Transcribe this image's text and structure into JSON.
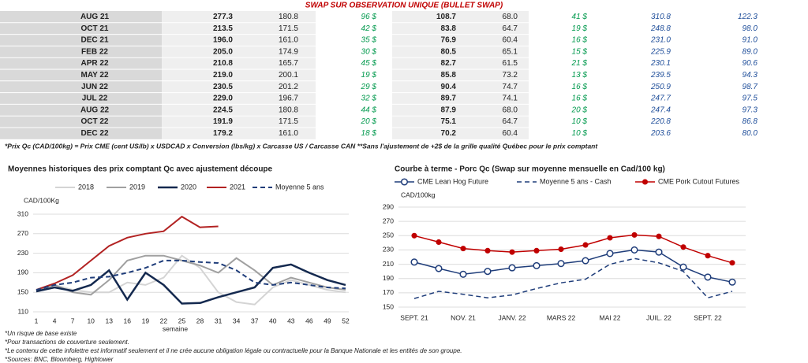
{
  "table": {
    "title": "SWAP SUR OBSERVATION UNIQUE (BULLET SWAP)",
    "rows": [
      [
        "AUG 21",
        "277.3",
        "180.8",
        "96 $",
        "108.7",
        "68.0",
        "41 $",
        "310.8",
        "122.3"
      ],
      [
        "OCT 21",
        "213.5",
        "171.5",
        "42 $",
        "83.8",
        "64.7",
        "19 $",
        "248.8",
        "98.0"
      ],
      [
        "DEC 21",
        "196.0",
        "161.0",
        "35 $",
        "76.9",
        "60.4",
        "16 $",
        "231.0",
        "91.0"
      ],
      [
        "FEB 22",
        "205.0",
        "174.9",
        "30 $",
        "80.5",
        "65.1",
        "15 $",
        "225.9",
        "89.0"
      ],
      [
        "APR 22",
        "210.8",
        "165.7",
        "45 $",
        "82.7",
        "61.5",
        "21 $",
        "230.1",
        "90.6"
      ],
      [
        "MAY 22",
        "219.0",
        "200.1",
        "19 $",
        "85.8",
        "73.2",
        "13 $",
        "239.5",
        "94.3"
      ],
      [
        "JUN 22",
        "230.5",
        "201.2",
        "29 $",
        "90.4",
        "74.7",
        "16 $",
        "250.9",
        "98.7"
      ],
      [
        "JUL 22",
        "229.0",
        "196.7",
        "32 $",
        "89.7",
        "74.1",
        "16 $",
        "247.7",
        "97.5"
      ],
      [
        "AUG 22",
        "224.5",
        "180.8",
        "44 $",
        "87.9",
        "68.0",
        "20 $",
        "247.4",
        "97.3"
      ],
      [
        "OCT 22",
        "191.9",
        "171.5",
        "20 $",
        "75.1",
        "64.7",
        "10 $",
        "220.8",
        "86.8"
      ],
      [
        "DEC 22",
        "179.2",
        "161.0",
        "18 $",
        "70.2",
        "60.4",
        "10 $",
        "203.6",
        "80.0"
      ]
    ],
    "footnote": "*Prix Qc (CAD/100kg) = Prix CME (cent US/lb) x USDCAD x Conversion (lbs/kg) x Carcasse US / Carcasse CAN **Sans l'ajustement de +2$ de la grille qualité Québec pour le prix comptant"
  },
  "chart_data": [
    {
      "type": "line",
      "title": "Moyennes historiques des prix comptant Qc avec ajustement découpe",
      "y_label": "CAD/100Kg",
      "x_label": "semaine",
      "x": [
        1,
        4,
        7,
        10,
        13,
        16,
        19,
        22,
        25,
        28,
        31,
        34,
        37,
        40,
        43,
        46,
        49,
        52
      ],
      "xlim": [
        1,
        52
      ],
      "xticks": [
        1,
        4,
        7,
        10,
        13,
        16,
        19,
        22,
        25,
        28,
        31,
        34,
        37,
        40,
        43,
        46,
        49,
        52
      ],
      "ylim": [
        110,
        310
      ],
      "yticks": [
        110,
        150,
        190,
        230,
        270,
        310
      ],
      "grid": true,
      "legend": "top",
      "series": [
        {
          "name": "2018",
          "color": "#d4d4d4",
          "width": 2,
          "values": [
            150,
            165,
            155,
            150,
            150,
            170,
            165,
            180,
            225,
            200,
            150,
            130,
            125,
            160,
            175,
            165,
            155,
            150
          ]
        },
        {
          "name": "2019",
          "color": "#a0a0a0",
          "width": 2,
          "values": [
            155,
            165,
            150,
            145,
            175,
            215,
            225,
            225,
            215,
            205,
            190,
            220,
            195,
            165,
            180,
            170,
            160,
            155
          ]
        },
        {
          "name": "2020",
          "color": "#14294f",
          "width": 2.5,
          "values": [
            152,
            160,
            153,
            165,
            195,
            135,
            190,
            165,
            127,
            128,
            140,
            150,
            160,
            200,
            207,
            190,
            175,
            165
          ]
        },
        {
          "name": "2021",
          "color": "#b22222",
          "width": 2,
          "values": [
            155,
            168,
            185,
            215,
            245,
            262,
            270,
            275,
            305,
            283,
            285,
            null,
            null,
            null,
            null,
            null,
            null,
            null
          ]
        },
        {
          "name": "Moyenne 5 ans",
          "color": "#1f3d7a",
          "width": 2,
          "dash": true,
          "values": [
            155,
            165,
            170,
            180,
            182,
            190,
            200,
            215,
            215,
            212,
            210,
            195,
            170,
            165,
            170,
            165,
            160,
            158
          ]
        }
      ]
    },
    {
      "type": "line",
      "title": "Courbe à terme - Porc Qc (Swap sur moyenne mensuelle en Cad/100 kg)",
      "y_label": "CAD/100kg",
      "categories": [
        "SEPT. 21",
        null,
        "NOV. 21",
        null,
        "JANV. 22",
        null,
        "MARS 22",
        null,
        "MAI 22",
        null,
        "JUIL. 22",
        null,
        "SEPT. 22",
        null
      ],
      "ylim": [
        150,
        290
      ],
      "yticks": [
        150,
        170,
        190,
        210,
        230,
        250,
        270,
        290
      ],
      "grid": true,
      "legend": "top",
      "series": [
        {
          "name": "CME Lean Hog Future",
          "color": "#1f3d7a",
          "width": 1.5,
          "marker": "open",
          "values": [
            213,
            204,
            196,
            200,
            205,
            208,
            211,
            215,
            225,
            230,
            227,
            206,
            192,
            185
          ]
        },
        {
          "name": "Moyenne 5 ans - Cash",
          "color": "#1f3d7a",
          "width": 1.5,
          "dash": true,
          "values": [
            162,
            172,
            168,
            163,
            167,
            176,
            184,
            189,
            210,
            218,
            212,
            200,
            163,
            172
          ]
        },
        {
          "name": "CME Pork Cutout Futures",
          "color": "#c00000",
          "width": 1.5,
          "marker": "filled",
          "values": [
            250,
            241,
            232,
            229,
            227,
            229,
            231,
            237,
            247,
            251,
            249,
            234,
            222,
            212
          ]
        }
      ]
    }
  ],
  "notes": [
    "*Un risque de base existe",
    "*Pour transactions de couverture seulement.",
    "*Le contenu de cette infolettre est informatif seulement et il ne crée aucune obligation légale ou contractuelle pour la Banque Nationale et les entités de son groupe.",
    "*Sources: BNC, Bloomberg, Hightower"
  ]
}
